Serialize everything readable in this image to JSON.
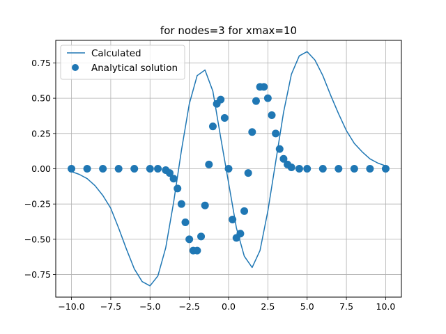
{
  "chart_data": {
    "type": "line",
    "title": "for nodes=3 for xmax=10",
    "xlabel": "",
    "ylabel": "",
    "xlim": [
      -11,
      11
    ],
    "ylim": [
      -0.91,
      0.91
    ],
    "xticks": [
      -10.0,
      -7.5,
      -5.0,
      -2.5,
      0.0,
      2.5,
      5.0,
      7.5,
      10.0
    ],
    "xtick_labels": [
      "−10.0",
      "−7.5",
      "−5.0",
      "−2.5",
      "0.0",
      "2.5",
      "5.0",
      "7.5",
      "10.0"
    ],
    "yticks": [
      0.75,
      0.5,
      0.25,
      0.0,
      -0.25,
      -0.5,
      -0.75
    ],
    "ytick_labels": [
      "0.75",
      "0.50",
      "0.25",
      "0.00",
      "−0.25",
      "−0.50",
      "−0.75"
    ],
    "grid": true,
    "legend_position": "top-left",
    "series": [
      {
        "name": "Calculated",
        "kind": "line",
        "color": "#1f77b4",
        "x": [
          -10,
          -9.5,
          -9,
          -8.5,
          -8,
          -7.5,
          -7,
          -6.5,
          -6,
          -5.5,
          -5,
          -4.5,
          -4,
          -3.5,
          -3,
          -2.5,
          -2,
          -1.5,
          -1,
          -0.5,
          0,
          0.5,
          1,
          1.5,
          2,
          2.5,
          3,
          3.5,
          4,
          4.5,
          5,
          5.5,
          6,
          6.5,
          7,
          7.5,
          8,
          8.5,
          9,
          9.5,
          10
        ],
        "y": [
          -0.02,
          -0.04,
          -0.07,
          -0.12,
          -0.19,
          -0.28,
          -0.42,
          -0.57,
          -0.71,
          -0.8,
          -0.83,
          -0.76,
          -0.56,
          -0.24,
          0.13,
          0.46,
          0.66,
          0.7,
          0.55,
          0.22,
          -0.1,
          -0.42,
          -0.62,
          -0.7,
          -0.58,
          -0.3,
          0.05,
          0.4,
          0.67,
          0.8,
          0.83,
          0.77,
          0.66,
          0.52,
          0.39,
          0.27,
          0.18,
          0.12,
          0.07,
          0.04,
          0.02
        ]
      },
      {
        "name": "Analytical solution",
        "kind": "scatter",
        "color": "#1f77b4",
        "x": [
          -10,
          -9,
          -8,
          -7,
          -6,
          -5,
          -4.5,
          -4,
          -3.75,
          -3.5,
          -3.25,
          -3,
          -2.75,
          -2.5,
          -2.25,
          -2,
          -1.75,
          -1.5,
          -1.25,
          -1,
          -0.75,
          -0.5,
          -0.25,
          0,
          0.25,
          0.5,
          0.75,
          1,
          1.25,
          1.5,
          1.75,
          2,
          2.25,
          2.5,
          2.75,
          3,
          3.25,
          3.5,
          3.75,
          4,
          4.5,
          5,
          6,
          7,
          8,
          9,
          10
        ],
        "y": [
          0,
          0,
          0,
          0,
          0,
          0,
          0,
          -0.01,
          -0.03,
          -0.07,
          -0.14,
          -0.25,
          -0.38,
          -0.5,
          -0.58,
          -0.58,
          -0.48,
          -0.26,
          0.03,
          0.3,
          0.46,
          0.49,
          0.36,
          0,
          -0.36,
          -0.49,
          -0.46,
          -0.3,
          -0.03,
          0.26,
          0.48,
          0.58,
          0.58,
          0.5,
          0.38,
          0.25,
          0.14,
          0.07,
          0.03,
          0.01,
          0,
          0,
          0,
          0,
          0,
          0,
          0
        ]
      }
    ]
  }
}
